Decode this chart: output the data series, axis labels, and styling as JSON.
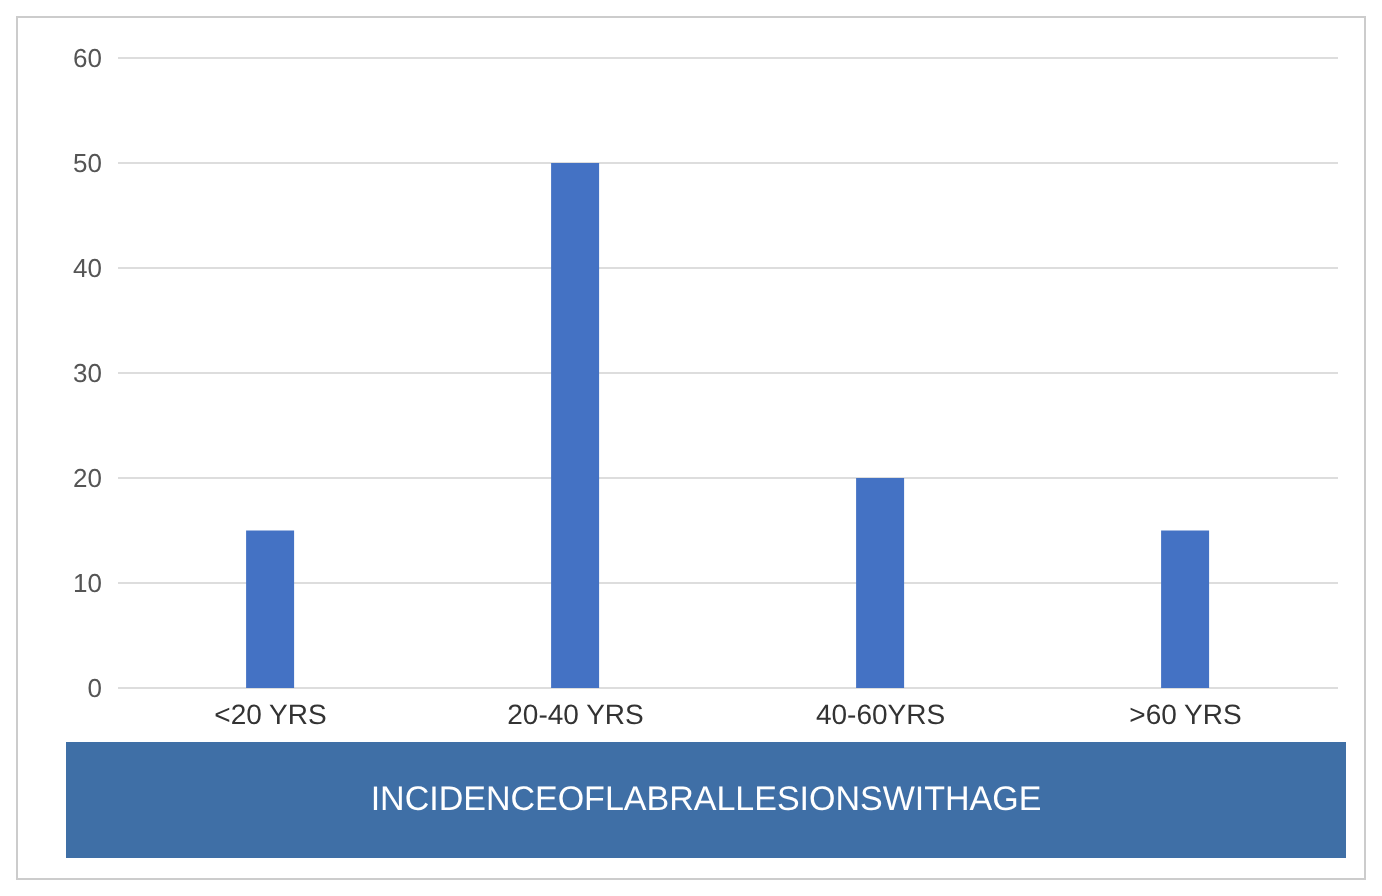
{
  "chart_data": {
    "type": "bar",
    "title": "INCIDENCEOFLABRALLESIONSWITHAGE",
    "categories": [
      "<20 YRS",
      "20-40 YRS",
      "40-60YRS",
      ">60 YRS"
    ],
    "values": [
      15,
      50,
      20,
      15
    ],
    "color": "#4472c4",
    "ylim": [
      0,
      60
    ],
    "yticks": [
      0,
      10,
      20,
      30,
      40,
      50,
      60
    ],
    "grid": "y"
  }
}
